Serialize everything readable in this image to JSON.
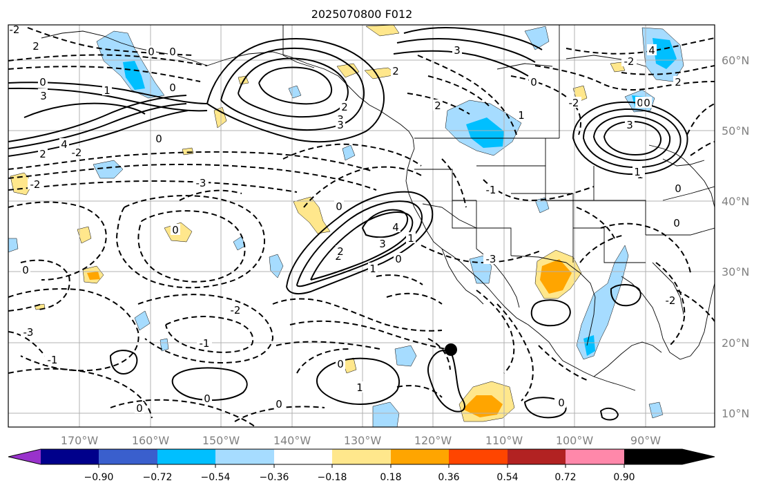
{
  "title": "2025070800 F012",
  "map": {
    "lon_labels": [
      "170°W",
      "160°W",
      "150°W",
      "140°W",
      "130°W",
      "120°W",
      "110°W",
      "100°W",
      "90°W"
    ],
    "lat_labels": [
      "60°N",
      "50°N",
      "40°N",
      "30°N",
      "20°N",
      "10°N"
    ],
    "gridlines": true,
    "contour_labels": [
      "3",
      "2",
      "0",
      "1",
      "0",
      "3",
      "4",
      "2",
      "0",
      "-2",
      "-3",
      "0",
      "2",
      "0",
      "-3",
      "3",
      "-2",
      "1",
      "0",
      "-1",
      "3",
      "4",
      "2",
      "0",
      "0",
      "0",
      "1",
      "2",
      "3",
      "2",
      "-2",
      "4",
      "3",
      "-2",
      "0",
      "-3",
      "-1",
      "-2",
      "0",
      "0",
      "2",
      "0",
      "-1",
      "-2",
      "1",
      "0",
      "0",
      "-2",
      "0",
      "0",
      "1",
      "1",
      "2",
      "3",
      "0",
      "3",
      "1",
      "0",
      "-3",
      "0"
    ],
    "marker": "black-dot"
  },
  "colorbar": {
    "tick_labels": [
      "−0.90",
      "−0.72",
      "−0.54",
      "−0.36",
      "−0.18",
      "0.18",
      "0.36",
      "0.54",
      "0.72",
      "0.90"
    ],
    "colors": [
      "#9932cc",
      "#00008b",
      "#3a5fcd",
      "#00bfff",
      "#a6dcff",
      "#ffffff",
      "#ffe78c",
      "#ffa500",
      "#ff4500",
      "#b22222",
      "#ff88aa"
    ]
  }
}
